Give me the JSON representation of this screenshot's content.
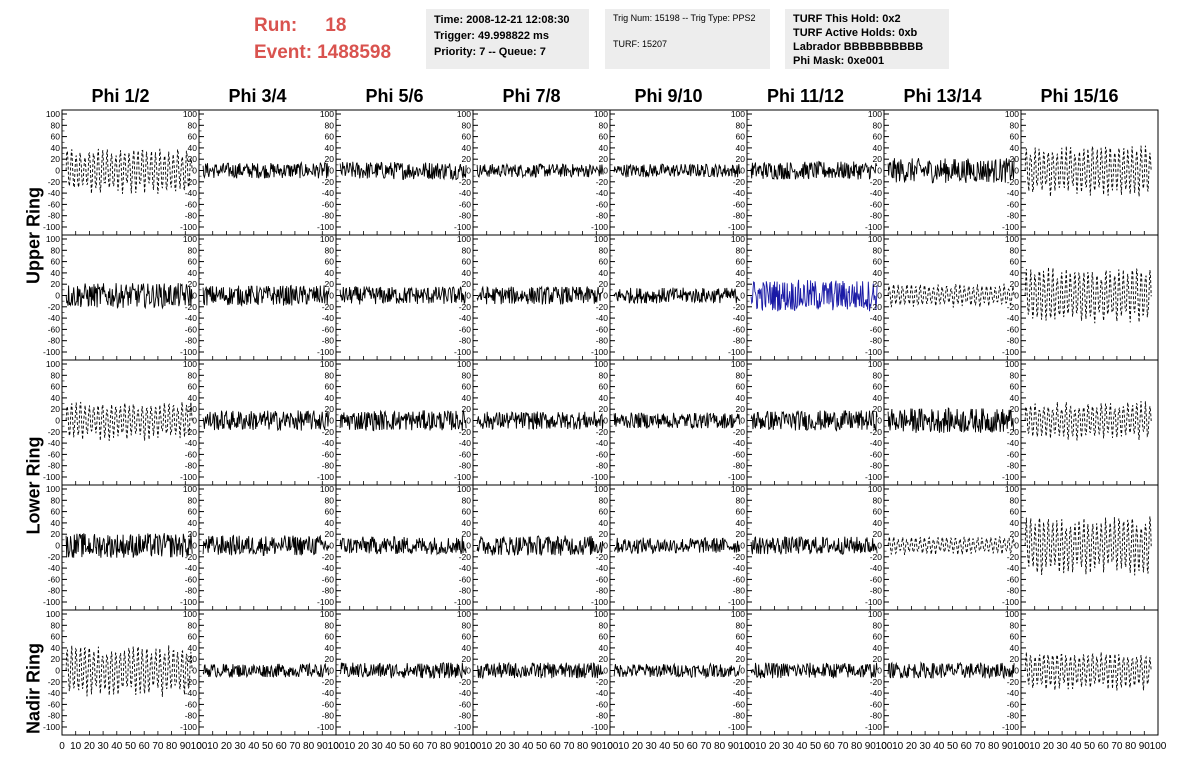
{
  "header": {
    "run_label": "Run:",
    "run_value": "18",
    "event_label": "Event:",
    "event_value": "1488598",
    "time": "Time: 2008-12-21 12:08:30",
    "trigger": "Trigger: 49.998822 ms",
    "priority": "Priority: 7 -- Queue: 7",
    "trig_num": "Trig Num: 15198 -- Trig Type: PPS2",
    "turf": "TURF: 15207",
    "turf_hold": "TURF This Hold: 0x2",
    "turf_active": "TURF Active Holds: 0xb",
    "labrador": "Labrador BBBBBBBBBB",
    "phi_mask": "Phi Mask: 0xe001"
  },
  "phi_titles": [
    "Phi 1/2",
    "Phi 3/4",
    "Phi 5/6",
    "Phi 7/8",
    "Phi 9/10",
    "Phi 11/12",
    "Phi 13/14",
    "Phi 15/16"
  ],
  "ring_labels": [
    "Upper Ring",
    "Lower Ring",
    "Nadir Ring"
  ],
  "chart_data": {
    "type": "line",
    "xlim": [
      0,
      100
    ],
    "ylim": [
      -100,
      100
    ],
    "x_ticks": [
      "0",
      "10",
      "20",
      "30",
      "40",
      "50",
      "60",
      "70",
      "80",
      "90",
      "100"
    ],
    "y_ticks": [
      "-100",
      "-80",
      "-60",
      "-40",
      "-20",
      "0",
      "20",
      "40",
      "60",
      "80",
      "100"
    ],
    "rows": 5,
    "cols": 8,
    "highlight_color": "#1a1aa6",
    "trace_color": "#000000",
    "highlight_panel": [
      1,
      5
    ],
    "dashed_panels": [
      [
        0,
        0
      ],
      [
        0,
        7
      ],
      [
        1,
        6
      ],
      [
        1,
        7
      ],
      [
        2,
        0
      ],
      [
        2,
        7
      ],
      [
        3,
        6
      ],
      [
        3,
        7
      ],
      [
        4,
        0
      ],
      [
        4,
        7
      ]
    ],
    "amplitude": [
      [
        35,
        14,
        16,
        12,
        12,
        16,
        22,
        40
      ],
      [
        22,
        18,
        16,
        16,
        14,
        28,
        18,
        45
      ],
      [
        30,
        18,
        18,
        16,
        14,
        18,
        22,
        30
      ],
      [
        22,
        18,
        16,
        18,
        14,
        16,
        14,
        45
      ],
      [
        40,
        12,
        14,
        14,
        12,
        14,
        14,
        30
      ]
    ]
  }
}
